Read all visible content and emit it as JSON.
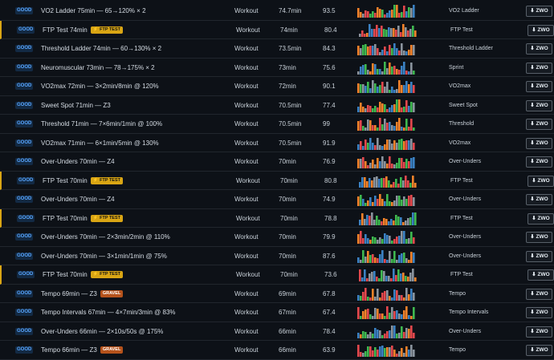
{
  "rows": [
    {
      "badge": "GOOD",
      "name": "VO2 Ladder 75min — 65→120% × 2",
      "type": "Workout",
      "duration": "74.7min",
      "score": "93.5",
      "category": "VO2 Ladder",
      "button": "ZWO"
    },
    {
      "badge": "GOOD",
      "name": "FTP Test 74min",
      "tag": {
        "label": "FTP TEST",
        "color": "#d9a514"
      },
      "highlight": true,
      "type": "Workout",
      "duration": "74min",
      "score": "80.4",
      "category": "FTP Test",
      "button": "ZWO"
    },
    {
      "badge": "GOOD",
      "name": "Threshold Ladder 74min — 60→130% × 2",
      "type": "Workout",
      "duration": "73.5min",
      "score": "84.3",
      "category": "Threshold Ladder",
      "button": "ZWO"
    },
    {
      "badge": "GOOD",
      "name": "Neuromuscular 73min — 78→175% × 2",
      "type": "Workout",
      "duration": "73min",
      "score": "75.6",
      "category": "Sprint",
      "button": "ZWO"
    },
    {
      "badge": "GOOD",
      "name": "VO2max 72min — 3×2min/8min @ 120%",
      "type": "Workout",
      "duration": "72min",
      "score": "90.1",
      "category": "VO2max",
      "button": "ZWO"
    },
    {
      "badge": "GOOD",
      "name": "Sweet Spot 71min — Z3",
      "type": "Workout",
      "duration": "70.5min",
      "score": "77.4",
      "category": "Sweet Spot",
      "button": "ZWO"
    },
    {
      "badge": "GOOD",
      "name": "Threshold 71min — 7×6min/1min @ 100%",
      "type": "Workout",
      "duration": "70.5min",
      "score": "99",
      "category": "Threshold",
      "button": "ZWO"
    },
    {
      "badge": "GOOD",
      "name": "VO2max 71min — 6×1min/5min @ 130%",
      "type": "Workout",
      "duration": "70.5min",
      "score": "91.9",
      "category": "VO2max",
      "button": "ZWO"
    },
    {
      "badge": "GOOD",
      "name": "Over-Unders 70min — Z4",
      "type": "Workout",
      "duration": "70min",
      "score": "76.9",
      "category": "Over-Unders",
      "button": "ZWO"
    },
    {
      "badge": "GOOD",
      "name": "FTP Test 70min",
      "tag": {
        "label": "FTP TEST",
        "color": "#d9a514"
      },
      "highlight": true,
      "type": "Workout",
      "duration": "70min",
      "score": "80.8",
      "category": "FTP Test",
      "button": "ZWO"
    },
    {
      "badge": "GOOD",
      "name": "Over-Unders 70min — Z4",
      "type": "Workout",
      "duration": "70min",
      "score": "74.9",
      "category": "Over-Unders",
      "button": "ZWO"
    },
    {
      "badge": "GOOD",
      "name": "FTP Test 70min",
      "tag": {
        "label": "FTP TEST",
        "color": "#d9a514"
      },
      "highlight": true,
      "type": "Workout",
      "duration": "70min",
      "score": "78.8",
      "category": "FTP Test",
      "button": "ZWO"
    },
    {
      "badge": "GOOD",
      "name": "Over-Unders 70min — 2×3min/2min @ 110%",
      "type": "Workout",
      "duration": "70min",
      "score": "79.9",
      "category": "Over-Unders",
      "button": "ZWO"
    },
    {
      "badge": "GOOD",
      "name": "Over-Unders 70min — 3×1min/1min @ 75%",
      "type": "Workout",
      "duration": "70min",
      "score": "87.6",
      "category": "Over-Unders",
      "button": "ZWO"
    },
    {
      "badge": "GOOD",
      "name": "FTP Test 70min",
      "tag": {
        "label": "FTP TEST",
        "color": "#d9a514"
      },
      "highlight": true,
      "type": "Workout",
      "duration": "70min",
      "score": "73.6",
      "category": "FTP Test",
      "button": "ZWO"
    },
    {
      "badge": "GOOD",
      "name": "Tempo 69min — Z3",
      "tag": {
        "label": "GRAVEL",
        "color": "#b5521b"
      },
      "type": "Workout",
      "duration": "69min",
      "score": "67.8",
      "category": "Tempo",
      "button": "ZWO"
    },
    {
      "badge": "GOOD",
      "name": "Tempo Intervals 67min — 4×7min/3min @ 83%",
      "type": "Workout",
      "duration": "67min",
      "score": "67.4",
      "category": "Tempo Intervals",
      "button": "ZWO"
    },
    {
      "badge": "GOOD",
      "name": "Over-Unders 66min — 2×10s/50s @ 175%",
      "type": "Workout",
      "duration": "66min",
      "score": "78.4",
      "category": "Over-Unders",
      "button": "ZWO"
    },
    {
      "badge": "GOOD",
      "name": "Tempo 66min — Z3",
      "tag": {
        "label": "GRAVEL",
        "color": "#b5521b"
      },
      "type": "Workout",
      "duration": "66min",
      "score": "63.9",
      "category": "Tempo",
      "button": "ZWO"
    }
  ]
}
